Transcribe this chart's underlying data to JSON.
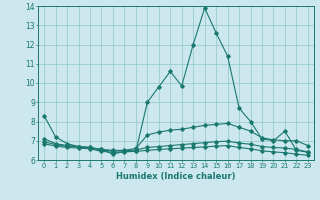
{
  "title": "",
  "xlabel": "Humidex (Indice chaleur)",
  "ylabel": "",
  "background_color": "#cce8ee",
  "grid_color": "#99cccc",
  "line_color": "#1a7870",
  "xlim": [
    -0.5,
    23.5
  ],
  "ylim": [
    6,
    14
  ],
  "xticks": [
    0,
    1,
    2,
    3,
    4,
    5,
    6,
    7,
    8,
    9,
    10,
    11,
    12,
    13,
    14,
    15,
    16,
    17,
    18,
    19,
    20,
    21,
    22,
    23
  ],
  "yticks": [
    6,
    7,
    8,
    9,
    10,
    11,
    12,
    13,
    14
  ],
  "lines": [
    {
      "x": [
        0,
        1,
        2,
        3,
        4,
        5,
        6,
        7,
        8,
        9,
        10,
        11,
        12,
        13,
        14,
        15,
        16,
        17,
        18,
        19,
        20,
        21,
        22,
        23
      ],
      "y": [
        8.3,
        7.2,
        6.85,
        6.7,
        6.65,
        6.55,
        6.3,
        6.45,
        6.45,
        9.0,
        9.8,
        10.6,
        9.85,
        12.0,
        13.9,
        12.6,
        11.4,
        8.7,
        8.0,
        7.1,
        7.0,
        7.5,
        6.5,
        6.4
      ]
    },
    {
      "x": [
        0,
        1,
        2,
        3,
        4,
        5,
        6,
        7,
        8,
        9,
        10,
        11,
        12,
        13,
        14,
        15,
        16,
        17,
        18,
        19,
        20,
        21,
        22,
        23
      ],
      "y": [
        7.1,
        6.85,
        6.75,
        6.7,
        6.65,
        6.55,
        6.5,
        6.5,
        6.6,
        7.3,
        7.45,
        7.55,
        7.6,
        7.7,
        7.8,
        7.85,
        7.9,
        7.7,
        7.5,
        7.15,
        7.05,
        7.0,
        7.0,
        6.75
      ]
    },
    {
      "x": [
        0,
        1,
        2,
        3,
        4,
        5,
        6,
        7,
        8,
        9,
        10,
        11,
        12,
        13,
        14,
        15,
        16,
        17,
        18,
        19,
        20,
        21,
        22,
        23
      ],
      "y": [
        6.95,
        6.8,
        6.72,
        6.68,
        6.62,
        6.52,
        6.47,
        6.48,
        6.52,
        6.65,
        6.7,
        6.75,
        6.8,
        6.85,
        6.9,
        6.95,
        6.98,
        6.88,
        6.82,
        6.7,
        6.65,
        6.62,
        6.55,
        6.42
      ]
    },
    {
      "x": [
        0,
        1,
        2,
        3,
        4,
        5,
        6,
        7,
        8,
        9,
        10,
        11,
        12,
        13,
        14,
        15,
        16,
        17,
        18,
        19,
        20,
        21,
        22,
        23
      ],
      "y": [
        6.85,
        6.72,
        6.65,
        6.62,
        6.58,
        6.45,
        6.4,
        6.42,
        6.45,
        6.5,
        6.55,
        6.58,
        6.62,
        6.65,
        6.68,
        6.72,
        6.75,
        6.65,
        6.58,
        6.48,
        6.42,
        6.38,
        6.3,
        6.25
      ]
    }
  ]
}
